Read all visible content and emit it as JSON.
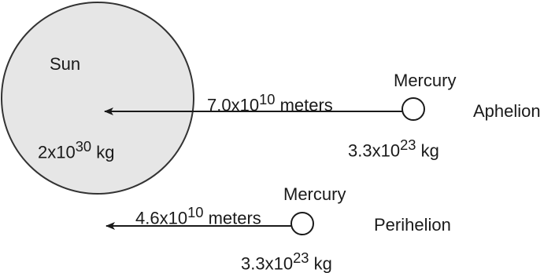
{
  "sun": {
    "name": "Sun",
    "mass_base": "2x10",
    "mass_exp": "30",
    "mass_unit": " kg",
    "fill": "#e6e6e6",
    "stroke": "#333333"
  },
  "aphelion": {
    "planet": "Mercury",
    "distance_base": "7.0x10",
    "distance_exp": "10",
    "distance_unit": " meters",
    "mass_base": "3.3x10",
    "mass_exp": "23",
    "mass_unit": " kg",
    "label": "Aphelion"
  },
  "perihelion": {
    "planet": "Mercury",
    "distance_base": "4.6x10",
    "distance_exp": "10",
    "distance_unit": " meters",
    "mass_base": "3.3x10",
    "mass_exp": "23",
    "mass_unit": " kg",
    "label": "Perihelion"
  }
}
